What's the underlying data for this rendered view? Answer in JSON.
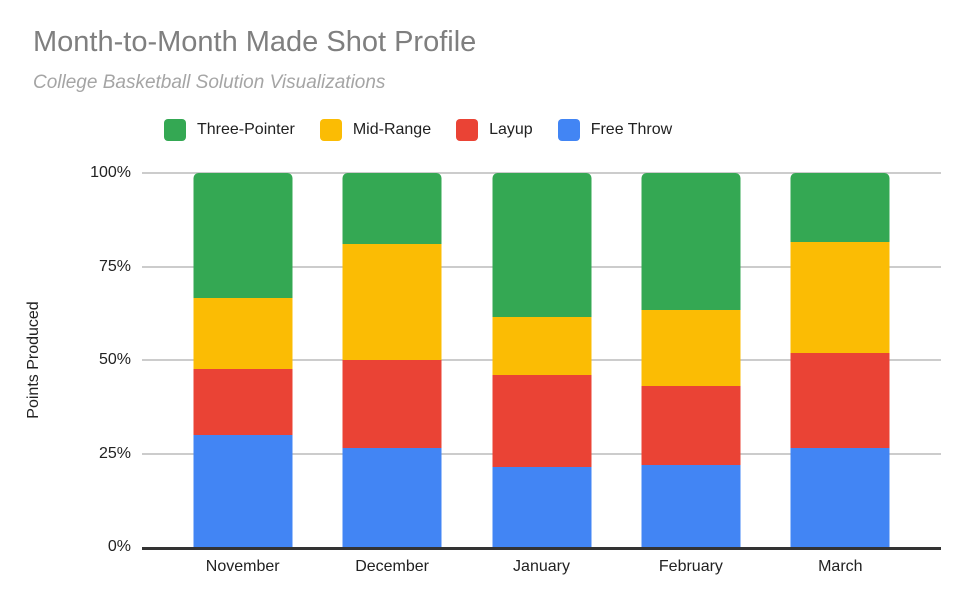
{
  "header": {
    "title": "Month-to-Month Made Shot Profile",
    "subtitle": "College Basketball Solution Visualizations"
  },
  "chart_data": {
    "type": "bar",
    "stacked": true,
    "stack_mode": "percent",
    "title": "Month-to-Month Made Shot Profile",
    "subtitle": "College Basketball Solution Visualizations",
    "categories": [
      "November",
      "December",
      "January",
      "February",
      "March"
    ],
    "series": [
      {
        "name": "Three-Pointer",
        "color": "#34A853",
        "values": [
          33.5,
          19,
          38.5,
          36.5,
          18.5
        ]
      },
      {
        "name": "Mid-Range",
        "color": "#FBBC04",
        "values": [
          19,
          31,
          15.5,
          20.5,
          29.5
        ]
      },
      {
        "name": "Layup",
        "color": "#EA4335",
        "values": [
          17.5,
          23.5,
          24.5,
          21,
          25.5
        ]
      },
      {
        "name": "Free Throw",
        "color": "#4285F4",
        "values": [
          30,
          26.5,
          21.5,
          22,
          26.5
        ]
      }
    ],
    "xlabel": "",
    "ylabel": "Points Produced",
    "y_ticks": [
      "0%",
      "25%",
      "50%",
      "75%",
      "100%"
    ],
    "y_tick_values": [
      0,
      25,
      50,
      75,
      100
    ],
    "ylim": [
      0,
      100
    ],
    "legend_position": "top",
    "grid": true
  },
  "colors": {
    "grid": "#cccccc",
    "baseline": "#333333",
    "title_text": "#7f7f7f",
    "subtitle_text": "#a5a5a5",
    "axis_text": "#222222",
    "legend_text": "#212121",
    "background": "#ffffff"
  }
}
